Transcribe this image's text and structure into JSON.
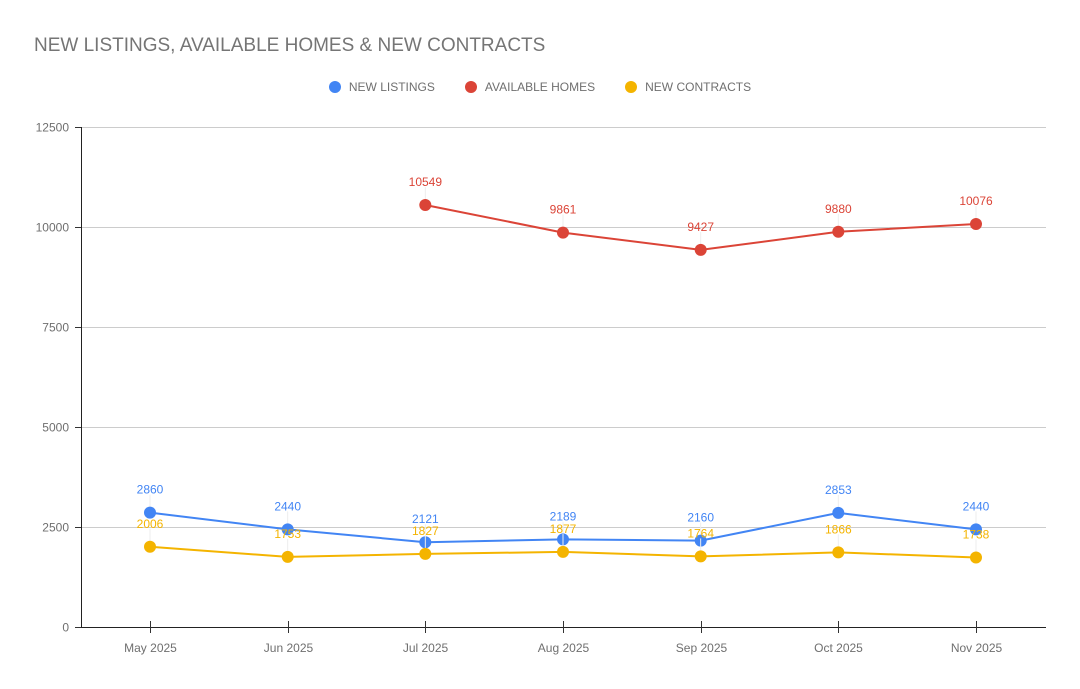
{
  "chart_data": {
    "type": "line",
    "title": "NEW LISTINGS, AVAILABLE HOMES & NEW CONTRACTS",
    "xlabel": "",
    "ylabel": "",
    "categories": [
      "May 2025",
      "Jun 2025",
      "Jul 2025",
      "Aug 2025",
      "Sep 2025",
      "Oct 2025",
      "Nov 2025"
    ],
    "ylim": [
      0,
      12500
    ],
    "yticks": [
      0,
      2500,
      5000,
      7500,
      10000,
      12500
    ],
    "grid": true,
    "legend_position": "top",
    "series": [
      {
        "name": "NEW LISTINGS",
        "color": "#4285f4",
        "values": [
          2860,
          2440,
          2121,
          2189,
          2160,
          2853,
          2440
        ]
      },
      {
        "name": "AVAILABLE HOMES",
        "color": "#db4437",
        "values": [
          null,
          null,
          10549,
          9861,
          9427,
          9880,
          10076
        ]
      },
      {
        "name": "NEW CONTRACTS",
        "color": "#f4b400",
        "values": [
          2006,
          1753,
          1827,
          1877,
          1764,
          1866,
          1738
        ]
      }
    ]
  }
}
